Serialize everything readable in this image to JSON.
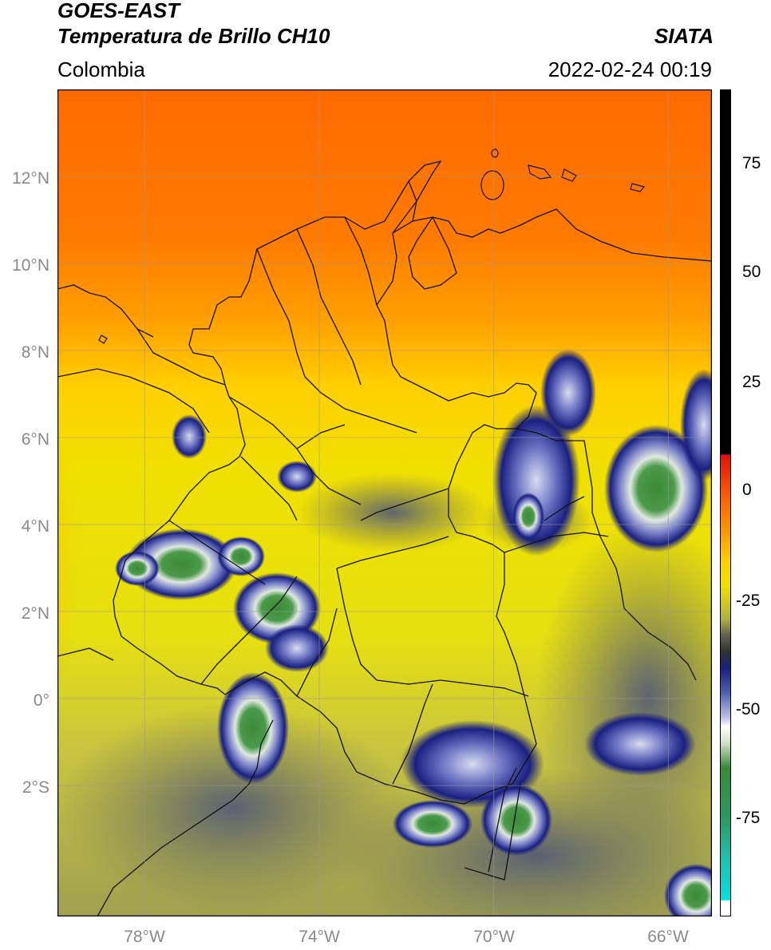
{
  "header": {
    "satellite": "GOES-EAST",
    "product": "Temperatura de Brillo CH10",
    "org": "SIATA",
    "region": "Colombia",
    "timestamp": "2022-02-24 00:19"
  },
  "map": {
    "lon_range": [
      -80.0,
      -65.0
    ],
    "lat_range": [
      -5.0,
      14.0
    ],
    "x_ticks": [
      {
        "value": -78,
        "label": "78°W"
      },
      {
        "value": -74,
        "label": "74°W"
      },
      {
        "value": -70,
        "label": "70°W"
      },
      {
        "value": -66,
        "label": "66°W"
      }
    ],
    "y_ticks": [
      {
        "value": 12,
        "label": "12°N"
      },
      {
        "value": 10,
        "label": "10°N"
      },
      {
        "value": 8,
        "label": "8°N"
      },
      {
        "value": 6,
        "label": "6°N"
      },
      {
        "value": 4,
        "label": "4°N"
      },
      {
        "value": 2,
        "label": "2°N"
      },
      {
        "value": 0,
        "label": "0°"
      },
      {
        "value": -2,
        "label": "2°S"
      }
    ],
    "grid": true
  },
  "colorbar": {
    "range": [
      -95,
      90
    ],
    "ticks": [
      {
        "value": 75,
        "label": "75"
      },
      {
        "value": 50,
        "label": "50"
      },
      {
        "value": 25,
        "label": "25"
      },
      {
        "value": 0,
        "label": "0"
      },
      {
        "value": -25,
        "label": "-25"
      },
      {
        "value": -50,
        "label": "-50"
      },
      {
        "value": -75,
        "label": "-75"
      }
    ]
  }
}
